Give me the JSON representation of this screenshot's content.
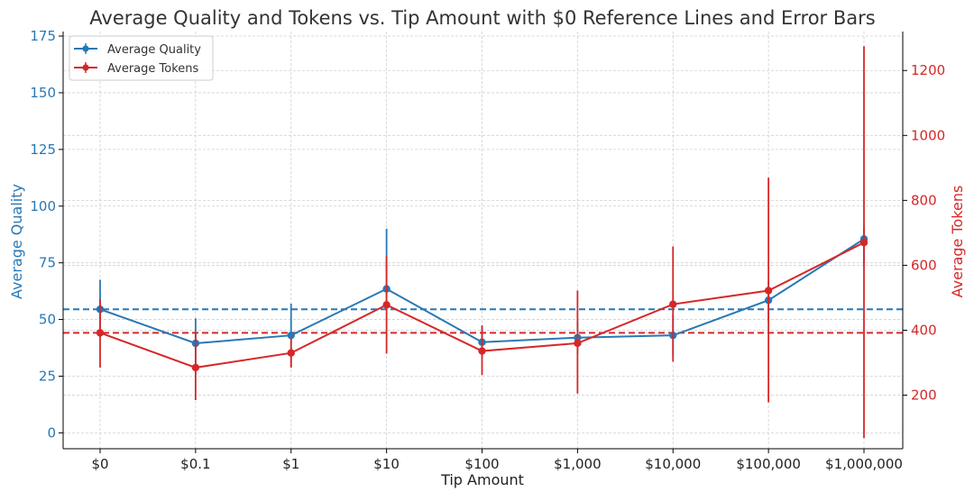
{
  "chart_data": {
    "type": "line",
    "title": "Average Quality and Tokens vs. Tip Amount with $0 Reference Lines and Error Bars",
    "xlabel": "Tip Amount",
    "ylabel_left": "Average Quality",
    "ylabel_right": "Average Tokens",
    "categories": [
      "$0",
      "$0.1",
      "$1",
      "$10",
      "$100",
      "$1,000",
      "$10,000",
      "$100,000",
      "$1,000,000"
    ],
    "ylim_left": [
      -7,
      177
    ],
    "ylim_right": [
      35,
      1320
    ],
    "yticks_left": [
      "0",
      "25",
      "50",
      "75",
      "100",
      "125",
      "150",
      "175"
    ],
    "yticks_right": [
      "200",
      "400",
      "600",
      "800",
      "1000",
      "1200"
    ],
    "grid": true,
    "legend_position": "top-left",
    "series": [
      {
        "name": "Average Quality",
        "axis": "left",
        "color": "#2878b5",
        "values": [
          54.5,
          39.5,
          43,
          63.5,
          40,
          42,
          43,
          58.5,
          85.5
        ],
        "err_low": [
          46,
          26,
          29,
          55,
          33,
          35,
          34,
          49,
          74
        ],
        "err_high": [
          67.5,
          50.5,
          57,
          90,
          47,
          49,
          52,
          67,
          91
        ]
      },
      {
        "name": "Average Tokens",
        "axis": "right",
        "color": "#d62728",
        "values": [
          392,
          285,
          330,
          478,
          336,
          360,
          480,
          522,
          670
        ],
        "err_low": [
          285,
          185,
          285,
          328,
          262,
          205,
          303,
          178,
          68
        ],
        "err_high": [
          495,
          393,
          375,
          628,
          415,
          522,
          658,
          870,
          1275
        ]
      }
    ],
    "reference_lines": [
      {
        "axis": "left",
        "value": 54.5,
        "color": "#2878b5"
      },
      {
        "axis": "right",
        "value": 392,
        "color": "#d62728"
      }
    ]
  }
}
